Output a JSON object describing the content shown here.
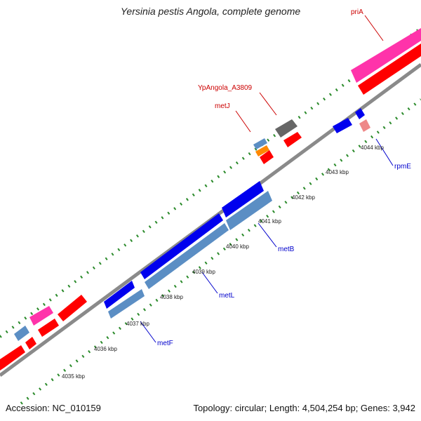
{
  "title": "Yersinia pestis Angola, complete genome",
  "footer": {
    "accession": "Accession: NC_010159",
    "topology": "Topology: circular; Length: 4,504,254 bp; Genes: 3,942"
  },
  "ticks": [
    "4035 kbp",
    "4036 kbp",
    "4037 kbp",
    "4038 kbp",
    "4039 kbp",
    "4040 kbp",
    "4041 kbp",
    "4042 kbp",
    "4043 kbp",
    "4044 kbp"
  ],
  "gene_labels": [
    {
      "text": "priA",
      "color": "#cc0000"
    },
    {
      "text": "YpAngola_A3809",
      "color": "#cc0000"
    },
    {
      "text": "metJ",
      "color": "#cc0000"
    },
    {
      "text": "rpmE",
      "color": "#0000cc"
    },
    {
      "text": "metB",
      "color": "#0000cc"
    },
    {
      "text": "metL",
      "color": "#0000cc"
    },
    {
      "text": "metF",
      "color": "#0000cc"
    }
  ],
  "colors": {
    "backbone": "#8a8a8a",
    "forward_cds": "#ff0000",
    "reverse_cds": "#0000ee",
    "pink_feature": "#ff33aa",
    "steel_feature": "#5b8ec4",
    "gray_feature": "#666666",
    "orange_feature": "#ff8800",
    "light_red_feature": "#ee8888",
    "tick_green": "#2a8a2a"
  }
}
